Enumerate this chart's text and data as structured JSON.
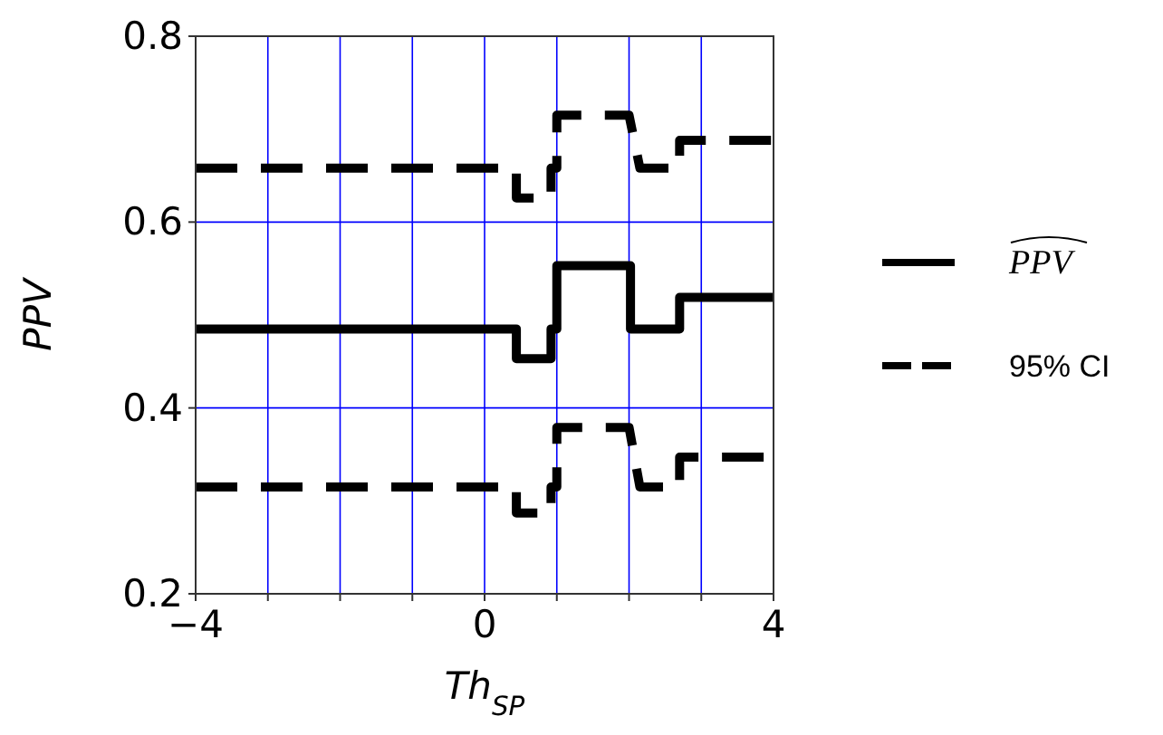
{
  "chart_data": {
    "type": "line",
    "xlabel": "Th$_{SP}$",
    "ylabel": "PPV",
    "xlim": [
      -4,
      4
    ],
    "ylim": [
      0.2,
      0.8
    ],
    "xticks": [
      {
        "value": -4,
        "label": "−4"
      },
      {
        "value": -3,
        "label": null
      },
      {
        "value": -2,
        "label": null
      },
      {
        "value": -1,
        "label": null
      },
      0,
      {
        "value": 1,
        "label": null
      },
      {
        "value": 2,
        "label": null
      },
      {
        "value": 3,
        "label": null
      },
      4
    ],
    "yticks": [
      0.2,
      0.4,
      0.6,
      0.8
    ],
    "grid": true,
    "legend": "right",
    "series": [
      {
        "name": "PPV",
        "color": "#000000",
        "line_style": "solid",
        "x": [
          -4,
          0.44,
          0.44,
          0.92,
          0.92,
          1.0,
          1.0,
          2.02,
          2.02,
          2.7,
          2.7,
          4
        ],
        "values": [
          0.485,
          0.485,
          0.453,
          0.453,
          0.485,
          0.485,
          0.553,
          0.553,
          0.485,
          0.485,
          0.519,
          0.519
        ]
      },
      {
        "name": "95% CI",
        "color": "#000000",
        "line_style": "dashed",
        "x": [
          -4,
          0.44,
          0.44,
          0.92,
          0.92,
          1.0,
          1.0,
          2.0,
          2.15,
          2.7,
          2.7,
          4
        ],
        "values": [
          0.658,
          0.658,
          0.626,
          0.626,
          0.658,
          0.658,
          0.715,
          0.715,
          0.658,
          0.658,
          0.688,
          0.688
        ]
      },
      {
        "color": "#000000",
        "line_style": "dashed",
        "x": [
          -4,
          0.44,
          0.44,
          0.92,
          0.92,
          1.0,
          1.0,
          2.0,
          2.15,
          2.7,
          2.7,
          4
        ],
        "values": [
          0.315,
          0.315,
          0.287,
          0.287,
          0.315,
          0.315,
          0.379,
          0.379,
          0.315,
          0.315,
          0.347,
          0.347
        ]
      }
    ]
  }
}
